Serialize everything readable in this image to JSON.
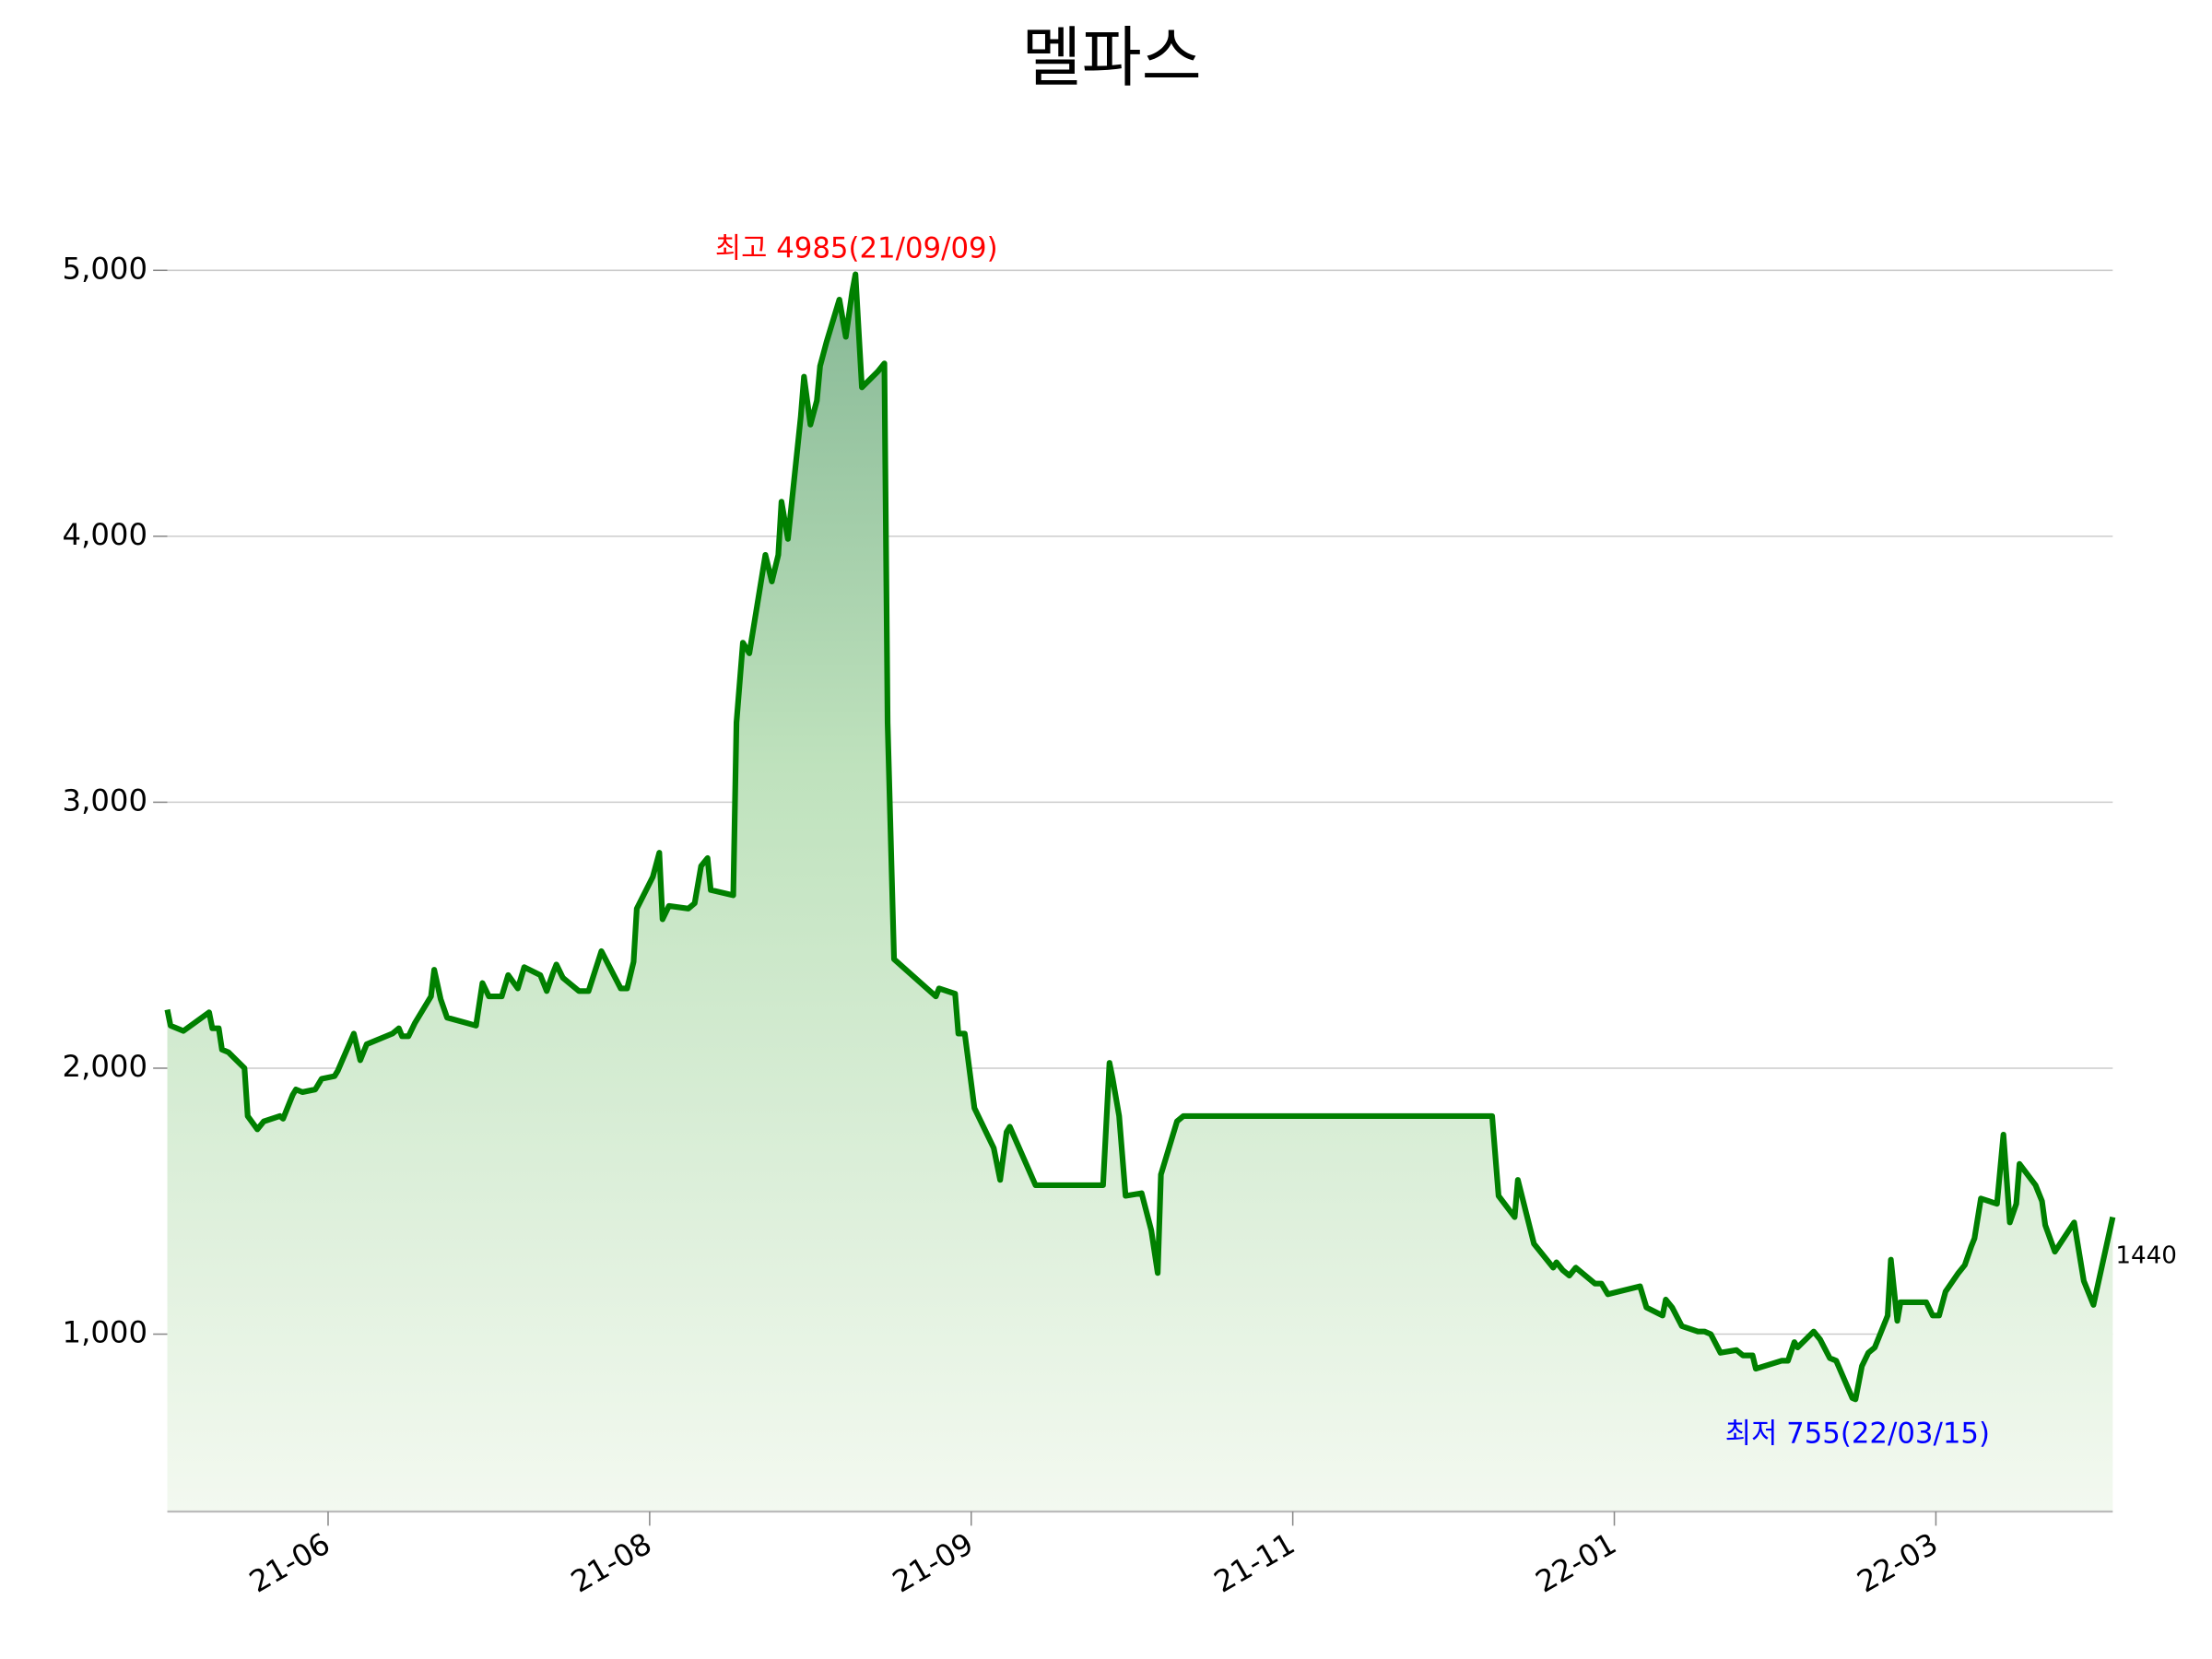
{
  "chart_data": {
    "type": "area-line",
    "title": "멜파스",
    "x": [
      -0.5,
      -0.49,
      -0.45,
      -0.37,
      -0.36,
      -0.34,
      -0.33,
      -0.31,
      -0.26,
      -0.25,
      -0.22,
      -0.2,
      -0.15,
      -0.14,
      -0.11,
      -0.1,
      -0.08,
      -0.04,
      -0.02,
      0.02,
      0.03,
      0.08,
      0.1,
      0.12,
      0.2,
      0.22,
      0.23,
      0.25,
      0.27,
      0.32,
      0.33,
      0.35,
      0.37,
      0.46,
      0.48,
      0.5,
      0.54,
      0.56,
      0.59,
      0.61,
      0.66,
      0.68,
      0.7,
      0.71,
      0.73,
      0.78,
      0.81,
      0.85,
      0.91,
      0.93,
      0.95,
      0.96,
      1.01,
      1.03,
      1.04,
      1.06,
      1.12,
      1.14,
      1.16,
      1.18,
      1.19,
      1.26,
      1.27,
      1.29,
      1.31,
      1.36,
      1.38,
      1.4,
      1.41,
      1.43,
      1.47,
      1.48,
      1.5,
      1.52,
      1.53,
      1.55,
      1.59,
      1.61,
      1.63,
      1.64,
      1.66,
      1.71,
      1.73,
      1.74,
      1.76,
      1.89,
      1.9,
      1.95,
      1.96,
      1.98,
      2.01,
      2.07,
      2.09,
      2.11,
      2.12,
      2.2,
      2.41,
      2.43,
      2.44,
      2.46,
      2.48,
      2.53,
      2.56,
      2.58,
      2.59,
      2.64,
      2.66,
      3.62,
      3.64,
      3.69,
      3.7,
      3.75,
      3.81,
      3.82,
      3.84,
      3.86,
      3.88,
      3.94,
      3.96,
      3.98,
      4.08,
      4.1,
      4.15,
      4.16,
      4.18,
      4.21,
      4.26,
      4.28,
      4.3,
      4.33,
      4.38,
      4.4,
      4.43,
      4.44,
      4.52,
      4.54,
      4.56,
      4.57,
      4.62,
      4.64,
      4.67,
      4.69,
      4.74,
      4.75,
      4.77,
      4.79,
      4.81,
      4.85,
      4.86,
      4.88,
      4.89,
      4.97,
      4.99,
      5.01,
      5.03,
      5.07,
      5.09,
      5.11,
      5.12,
      5.14,
      5.19,
      5.21,
      5.23,
      5.25,
      5.26,
      5.31,
      5.33,
      5.34,
      5.37,
      5.43,
      5.46,
      5.49,
      5.55
    ],
    "series": [
      {
        "color": "#008000",
        "values": [
          2220,
          2160,
          2140,
          2210,
          2150,
          2150,
          2070,
          2060,
          2000,
          1820,
          1770,
          1800,
          1820,
          1810,
          1900,
          1920,
          1910,
          1920,
          1960,
          1970,
          1990,
          2130,
          2030,
          2090,
          2130,
          2150,
          2120,
          2120,
          2170,
          2270,
          2370,
          2260,
          2190,
          2160,
          2320,
          2270,
          2270,
          2350,
          2300,
          2380,
          2350,
          2290,
          2360,
          2390,
          2340,
          2290,
          2290,
          2440,
          2300,
          2300,
          2400,
          2600,
          2720,
          2810,
          2560,
          2610,
          2600,
          2620,
          2760,
          2790,
          2670,
          2650,
          3300,
          3600,
          3560,
          3930,
          3830,
          3930,
          4130,
          3990,
          4450,
          4600,
          4420,
          4510,
          4640,
          4730,
          4890,
          4750,
          4920,
          4985,
          4560,
          4620,
          4650,
          3300,
          2410,
          2270,
          2300,
          2280,
          2130,
          2130,
          1850,
          1700,
          1580,
          1760,
          1780,
          1560,
          1560,
          2020,
          1960,
          1820,
          1520,
          1530,
          1390,
          1230,
          1600,
          1800,
          1820,
          1820,
          1520,
          1440,
          1580,
          1340,
          1250,
          1270,
          1240,
          1220,
          1250,
          1190,
          1190,
          1150,
          1180,
          1100,
          1070,
          1130,
          1100,
          1030,
          1010,
          1010,
          1000,
          930,
          940,
          920,
          920,
          870,
          900,
          900,
          970,
          950,
          1010,
          980,
          910,
          900,
          760,
          755,
          880,
          930,
          950,
          1070,
          1280,
          1050,
          1120,
          1120,
          1070,
          1070,
          1160,
          1230,
          1260,
          1330,
          1360,
          1510,
          1490,
          1750,
          1420,
          1490,
          1640,
          1560,
          1500,
          1410,
          1310,
          1420,
          1200,
          1110,
          1440
        ]
      }
    ],
    "xlim": [
      -0.5,
      5.55
    ],
    "xticks": [
      {
        "value": 0,
        "label": "21-06"
      },
      {
        "value": 1,
        "label": "21-08"
      },
      {
        "value": 2,
        "label": "21-09"
      },
      {
        "value": 3,
        "label": "21-11"
      },
      {
        "value": 4,
        "label": "22-01"
      },
      {
        "value": 5,
        "label": "22-03"
      }
    ],
    "ylim": [
      333,
      5270
    ],
    "yticks": [
      {
        "value": 1000,
        "label": "1,000"
      },
      {
        "value": 2000,
        "label": "2,000"
      },
      {
        "value": 3000,
        "label": "3,000"
      },
      {
        "value": 4000,
        "label": "4,000"
      },
      {
        "value": 5000,
        "label": "5,000"
      }
    ],
    "grid": true,
    "annotations": {
      "max": "최고 4985(21/09/09)",
      "min": "최저 755(22/03/15)",
      "last": "1440"
    }
  }
}
